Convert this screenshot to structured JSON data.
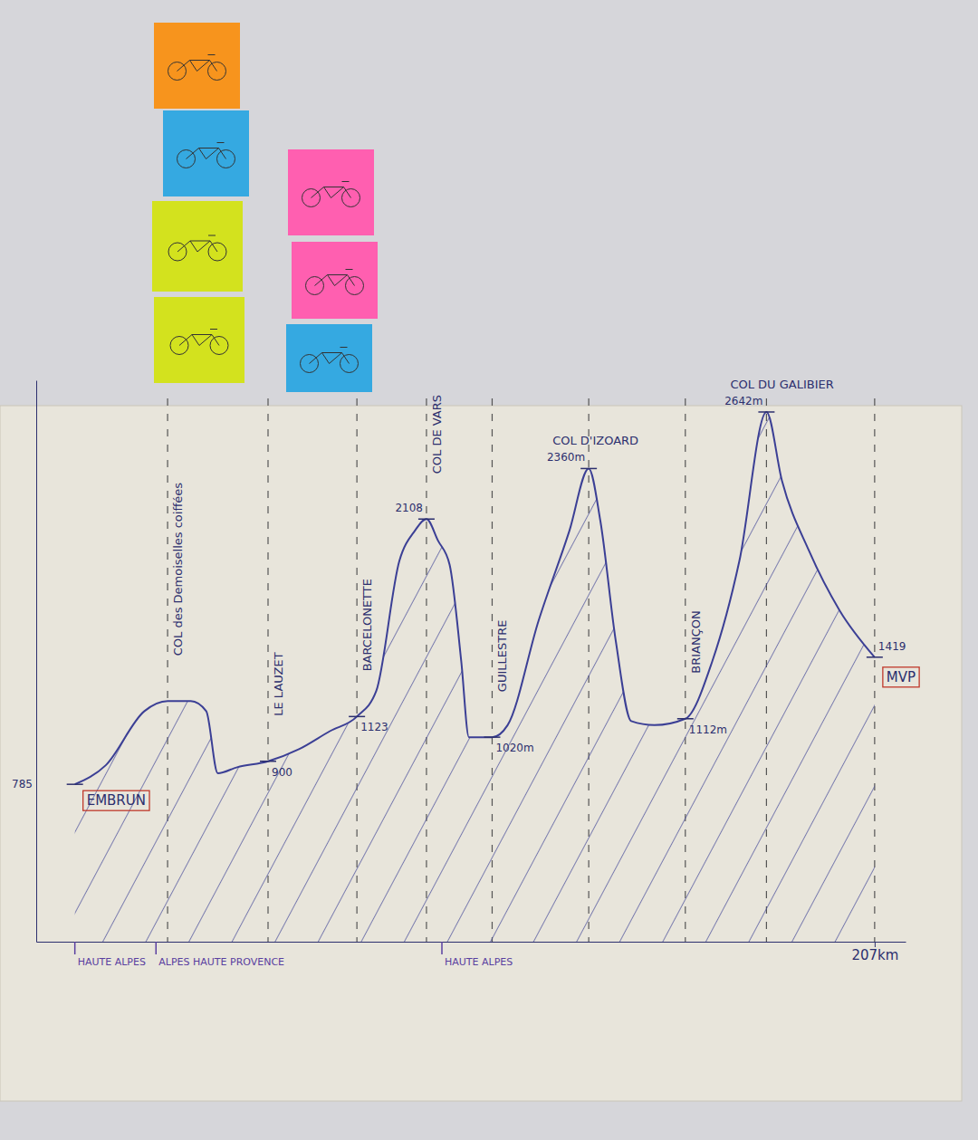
{
  "chart_data": {
    "type": "area",
    "x": [
      0,
      8,
      18,
      24,
      30,
      34,
      37,
      42,
      50,
      58,
      66,
      73,
      78,
      84,
      88,
      91,
      94,
      97,
      100,
      102,
      108,
      112,
      120,
      128,
      133,
      136,
      140,
      144,
      150,
      158,
      165,
      172,
      179,
      183,
      190,
      198,
      207
    ],
    "values": [
      785,
      880,
      1150,
      1200,
      1200,
      1150,
      840,
      870,
      900,
      960,
      1050,
      1123,
      1250,
      1900,
      2050,
      2108,
      2000,
      1880,
      1400,
      1020,
      1020,
      1080,
      1600,
      2050,
      2360,
      2100,
      1500,
      1100,
      1080,
      1112,
      1400,
      1900,
      2642,
      2300,
      1950,
      1650,
      1419
    ],
    "color": "#3b3f95",
    "xlim": [
      -10,
      215
    ],
    "ylim": [
      0,
      2800
    ],
    "xticks": [
      {
        "value": 207,
        "label": "207km"
      }
    ],
    "tick_labels": "x",
    "waypoints": [
      {
        "x": 0,
        "name": "EMBRUN",
        "elevation": 785,
        "elevation_label": "785"
      },
      {
        "x": 24,
        "name": "COL des Demoiselles coiffées"
      },
      {
        "x": 50,
        "name": "LE LAUZET",
        "elevation": 900,
        "elevation_label": "900"
      },
      {
        "x": 73,
        "name": "BARCELONETTE",
        "elevation": 1123,
        "elevation_label": "1123"
      },
      {
        "x": 91,
        "name": "COL DE VARS",
        "elevation": 2108,
        "elevation_label": "2108"
      },
      {
        "x": 108,
        "name": "GUILLESTRE",
        "elevation": 1020,
        "elevation_label": "1020m"
      },
      {
        "x": 133,
        "name": "COL D'IZOARD",
        "elevation": 2360,
        "elevation_label": "2360m"
      },
      {
        "x": 158,
        "name": "BRIANÇON",
        "elevation": 1112,
        "elevation_label": "1112m"
      },
      {
        "x": 179,
        "name": "COL DU GALIBIER",
        "elevation": 2642,
        "elevation_label": "2642m"
      },
      {
        "x": 207,
        "name": "MVP",
        "elevation": 1419,
        "elevation_label": "1419"
      }
    ],
    "regions": [
      {
        "x": 0,
        "label": "HAUTE ALPES"
      },
      {
        "x": 21,
        "label": "ALPES HAUTE PROVENCE"
      },
      {
        "x": 95,
        "label": "HAUTE ALPES"
      }
    ]
  }
}
